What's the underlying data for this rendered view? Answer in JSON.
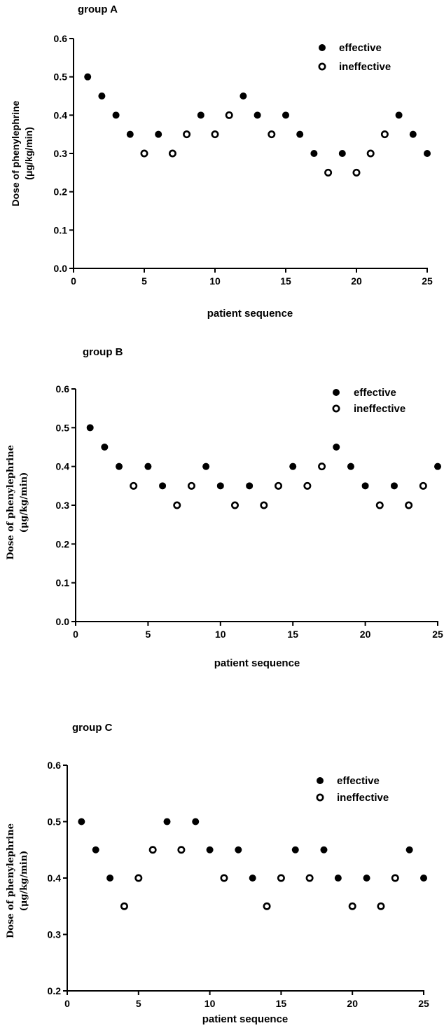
{
  "marker_colors": {
    "effective": "#000000",
    "ineffective": "#000000",
    "hollow_fill": "#ffffff"
  },
  "chart_data": [
    {
      "type": "scatter",
      "title": "group A",
      "xlabel": "patient sequence",
      "ylabel_line1": "Dose of phenylephrine",
      "ylabel_line2": "(μg/kg/min)",
      "xlim": [
        0,
        25
      ],
      "ylim": [
        0,
        0.6
      ],
      "xticks": [
        0,
        5,
        10,
        15,
        20,
        25
      ],
      "xtick_labels": [
        "0",
        "5",
        "10",
        "15",
        "20",
        "25"
      ],
      "yticks": [
        0,
        0.1,
        0.2,
        0.3,
        0.4,
        0.5,
        0.6
      ],
      "ytick_labels": [
        "0.0",
        "0.1",
        "0.2",
        "0.3",
        "0.4",
        "0.5",
        "0.6"
      ],
      "grid": false,
      "legend_position": "top-right",
      "legend": [
        {
          "label": "effective",
          "marker": "filled"
        },
        {
          "label": "ineffective",
          "marker": "hollow"
        }
      ],
      "series": [
        {
          "name": "effective",
          "x": [
            1,
            2,
            3,
            4,
            6,
            9,
            12,
            13,
            15,
            16,
            17,
            19,
            23,
            24,
            25
          ],
          "y": [
            0.5,
            0.45,
            0.4,
            0.35,
            0.35,
            0.4,
            0.45,
            0.4,
            0.4,
            0.35,
            0.3,
            0.3,
            0.4,
            0.35,
            0.3
          ]
        },
        {
          "name": "ineffective",
          "x": [
            5,
            7,
            8,
            10,
            11,
            14,
            18,
            20,
            21,
            22
          ],
          "y": [
            0.3,
            0.3,
            0.35,
            0.35,
            0.4,
            0.35,
            0.25,
            0.25,
            0.3,
            0.35
          ]
        }
      ]
    },
    {
      "type": "scatter",
      "title": "group B",
      "xlabel": "patient sequence",
      "ylabel_line1": "Dose of phenylephrine",
      "ylabel_line2": "(μg/kg/min)",
      "xlim": [
        0,
        25
      ],
      "ylim": [
        0,
        0.6
      ],
      "xticks": [
        0,
        5,
        10,
        15,
        20,
        25
      ],
      "xtick_labels": [
        "0",
        "5",
        "10",
        "15",
        "20",
        "25"
      ],
      "yticks": [
        0,
        0.1,
        0.2,
        0.3,
        0.4,
        0.5,
        0.6
      ],
      "ytick_labels": [
        "0.0",
        "0.1",
        "0.2",
        "0.3",
        "0.4",
        "0.5",
        "0.6"
      ],
      "grid": false,
      "legend_position": "top-right",
      "legend": [
        {
          "label": "effective",
          "marker": "filled"
        },
        {
          "label": "ineffective",
          "marker": "hollow"
        }
      ],
      "series": [
        {
          "name": "effective",
          "x": [
            1,
            2,
            3,
            5,
            6,
            9,
            10,
            12,
            15,
            18,
            19,
            20,
            22,
            25
          ],
          "y": [
            0.5,
            0.45,
            0.4,
            0.4,
            0.35,
            0.4,
            0.35,
            0.35,
            0.4,
            0.45,
            0.4,
            0.35,
            0.35,
            0.4
          ]
        },
        {
          "name": "ineffective",
          "x": [
            4,
            7,
            8,
            11,
            13,
            14,
            16,
            17,
            21,
            23,
            24
          ],
          "y": [
            0.35,
            0.3,
            0.35,
            0.3,
            0.3,
            0.35,
            0.35,
            0.4,
            0.3,
            0.3,
            0.35
          ]
        }
      ]
    },
    {
      "type": "scatter",
      "title": "group C",
      "xlabel": "patient sequence",
      "ylabel_line1": "Dose of phenylephrine",
      "ylabel_line2": "(μg/kg/min)",
      "xlim": [
        0,
        25
      ],
      "ylim": [
        0.2,
        0.6
      ],
      "xticks": [
        0,
        5,
        10,
        15,
        20,
        25
      ],
      "xtick_labels": [
        "0",
        "5",
        "10",
        "15",
        "20",
        "25"
      ],
      "yticks": [
        0.2,
        0.3,
        0.4,
        0.5,
        0.6
      ],
      "ytick_labels": [
        "0.2",
        "0.3",
        "0.4",
        "0.5",
        "0.6"
      ],
      "grid": false,
      "legend_position": "top-right",
      "legend": [
        {
          "label": "effective",
          "marker": "filled"
        },
        {
          "label": "ineffective",
          "marker": "hollow"
        }
      ],
      "series": [
        {
          "name": "effective",
          "x": [
            1,
            2,
            3,
            7,
            9,
            10,
            12,
            13,
            16,
            18,
            19,
            21,
            24,
            25
          ],
          "y": [
            0.5,
            0.45,
            0.4,
            0.5,
            0.5,
            0.45,
            0.45,
            0.4,
            0.45,
            0.45,
            0.4,
            0.4,
            0.45,
            0.4
          ]
        },
        {
          "name": "ineffective",
          "x": [
            4,
            5,
            6,
            8,
            11,
            14,
            15,
            17,
            20,
            22,
            23
          ],
          "y": [
            0.35,
            0.4,
            0.45,
            0.45,
            0.4,
            0.35,
            0.4,
            0.4,
            0.35,
            0.35,
            0.4
          ]
        }
      ]
    }
  ]
}
